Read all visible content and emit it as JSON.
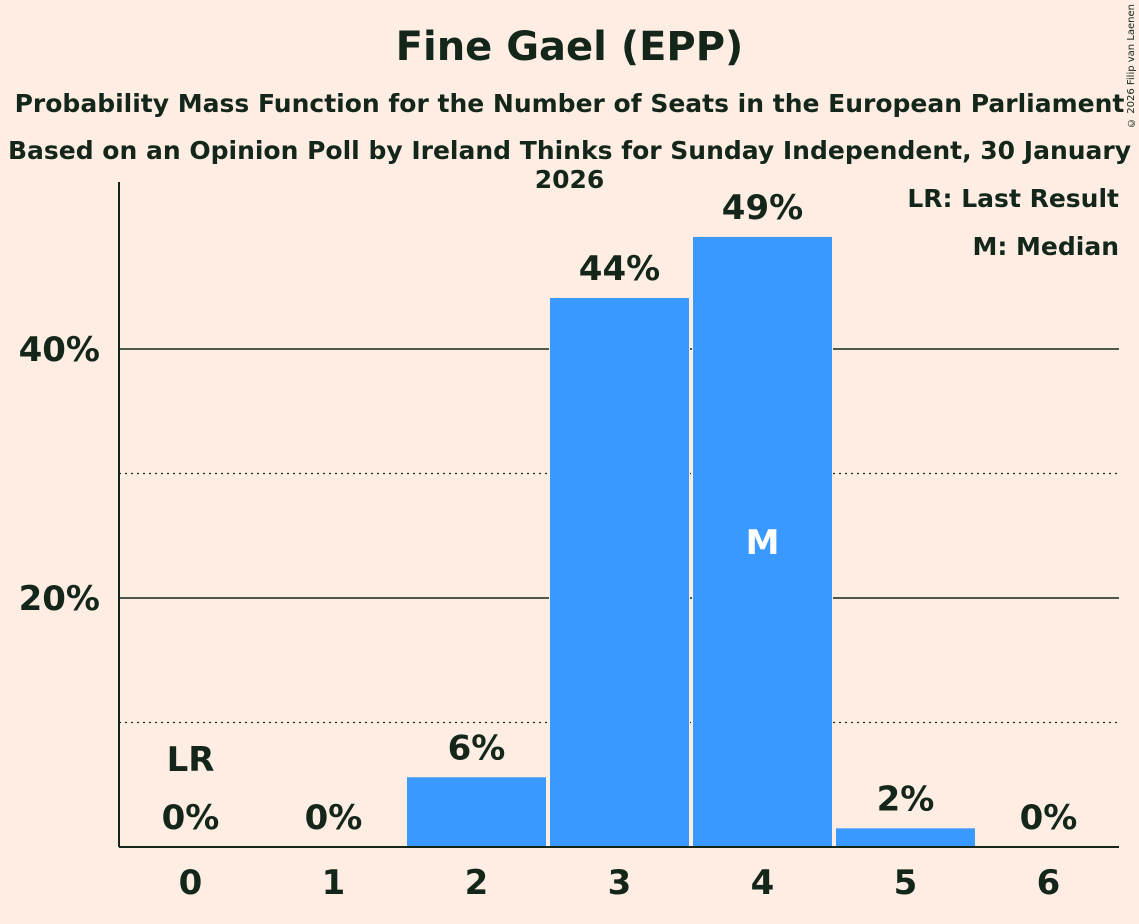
{
  "title": "Fine Gael (EPP)",
  "subtitle": "Probability Mass Function for the Number of Seats in the European Parliament",
  "subtitle2": "Based on an Opinion Poll by Ireland Thinks for Sunday Independent, 30 January 2026",
  "copyright": "© 2026 Filip van Laenen",
  "legend": {
    "last_result": "LR: Last Result",
    "median": "M: Median"
  },
  "colors": {
    "background": "#FDEDE3",
    "bar": "#3A99FF",
    "text": "#14261A"
  },
  "chart_data": {
    "type": "bar",
    "title": "Fine Gael (EPP)",
    "categories": [
      "0",
      "1",
      "2",
      "3",
      "4",
      "5",
      "6"
    ],
    "values": [
      0,
      0,
      5.6,
      44.1,
      49.0,
      1.5,
      0
    ],
    "value_labels": [
      "0%",
      "0%",
      "6%",
      "44%",
      "49%",
      "2%",
      "0%"
    ],
    "ylim": [
      0,
      53
    ],
    "yticks": [
      20,
      40
    ],
    "ytick_labels": [
      "20%",
      "40%"
    ],
    "minor_gridlines": [
      10,
      30
    ],
    "last_result_index": 0,
    "last_result_label": "LR",
    "median_index": 4,
    "median_label": "M",
    "xlabel": "",
    "ylabel": ""
  }
}
